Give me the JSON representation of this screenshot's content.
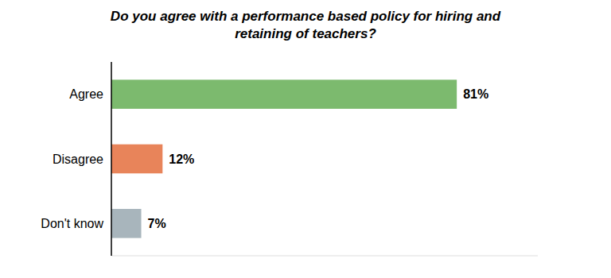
{
  "chart_data": {
    "type": "bar",
    "orientation": "horizontal",
    "title": "Do you agree with a performance based policy for hiring and\nretaining of teachers?",
    "categories": [
      "Don't know",
      "Disagree",
      "Agree"
    ],
    "values": [
      7,
      12,
      81
    ],
    "value_labels": [
      "7%",
      "12%",
      "81%"
    ],
    "colors": [
      "#a8b5bc",
      "#e8845a",
      "#7cba6e"
    ],
    "xlim": [
      0,
      100
    ],
    "data_labels": true,
    "tick_labels": "y",
    "grid": false
  }
}
